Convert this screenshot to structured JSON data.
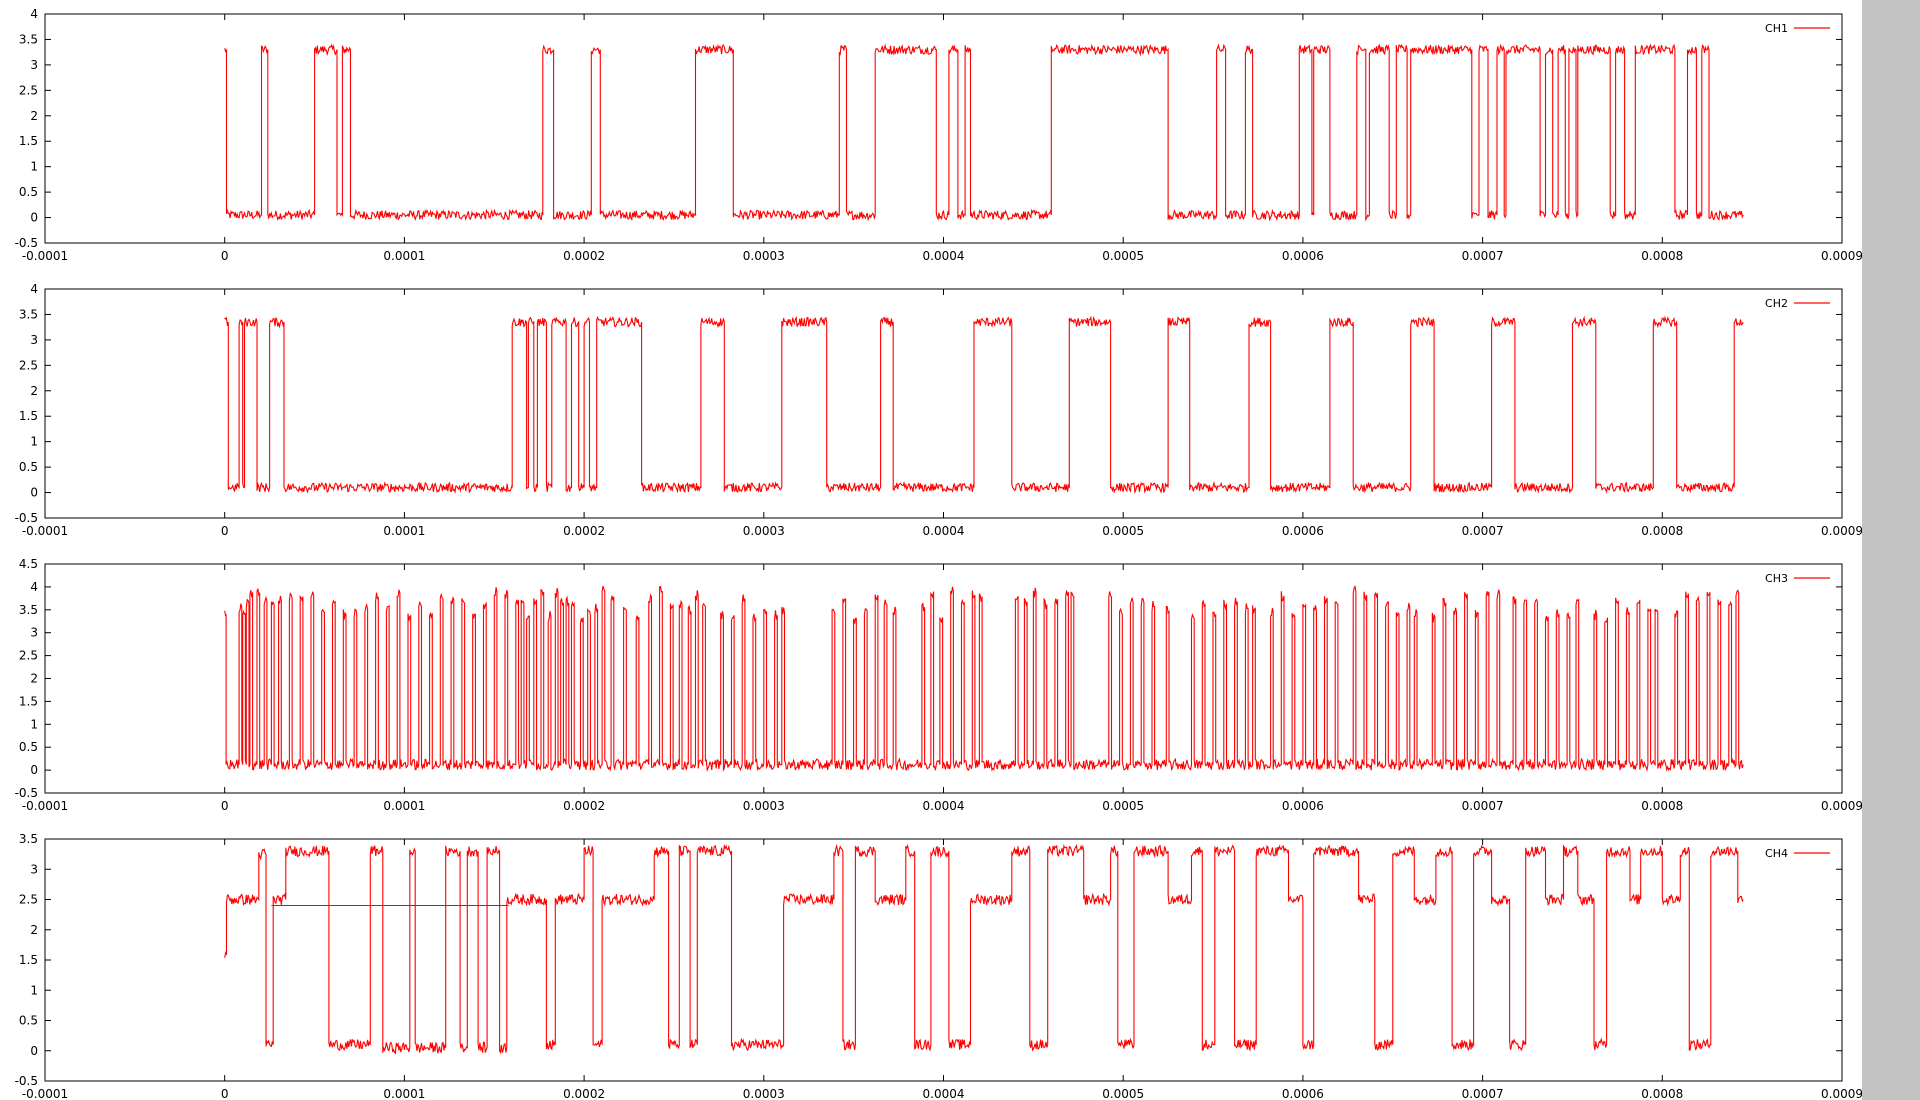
{
  "chart_data": [
    {
      "type": "line",
      "legend_placement": "top-right",
      "grid": false,
      "xlim": [
        -0.0001,
        0.0009
      ],
      "ylim": [
        -0.5,
        4
      ],
      "x_ticks": [
        "-0.0001",
        "0",
        "0.0001",
        "0.0002",
        "0.0003",
        "0.0004",
        "0.0005",
        "0.0006",
        "0.0007",
        "0.0008",
        "0.0009"
      ],
      "y_ticks": [
        "-0.5",
        "0",
        "0.5",
        "1",
        "1.5",
        "2",
        "2.5",
        "3",
        "3.5",
        "4"
      ],
      "series": [
        {
          "name": "CH1",
          "levels": {
            "high": 3.3,
            "low": 0.05,
            "noise": 0.09
          },
          "transitions": [
            [
              0,
              3.3
            ],
            [
              1e-06,
              0.05
            ],
            [
              2.05e-05,
              3.3
            ],
            [
              2.4e-05,
              0.05
            ],
            [
              5e-05,
              3.3
            ],
            [
              6.25e-05,
              0.05
            ],
            [
              6.55e-05,
              3.3
            ],
            [
              7e-05,
              0.05
            ],
            [
              0.000177,
              3.3
            ],
            [
              0.000183,
              0.05
            ],
            [
              0.000204,
              3.3
            ],
            [
              0.000209,
              0.05
            ],
            [
              0.000262,
              3.3
            ],
            [
              0.000283,
              0.05
            ],
            [
              0.000342,
              3.3
            ],
            [
              0.000346,
              0.05
            ],
            [
              0.000362,
              3.3
            ],
            [
              0.000396,
              0.05
            ],
            [
              0.000403,
              3.3
            ],
            [
              0.000408,
              0.05
            ],
            [
              0.000412,
              3.3
            ],
            [
              0.000415,
              0.05
            ],
            [
              0.00046,
              3.3
            ],
            [
              0.000525,
              0.05
            ],
            [
              0.000552,
              3.3
            ],
            [
              0.000557,
              0.05
            ],
            [
              0.000568,
              3.3
            ],
            [
              0.000572,
              0.05
            ],
            [
              0.000598,
              3.3
            ],
            [
              0.000605,
              0.05
            ],
            [
              0.000606,
              3.3
            ],
            [
              0.000615,
              0.05
            ],
            [
              0.00063,
              3.3
            ],
            [
              0.000635,
              0.05
            ],
            [
              0.000637,
              3.3
            ],
            [
              0.000648,
              0.05
            ],
            [
              0.000652,
              3.3
            ],
            [
              0.000658,
              0.05
            ],
            [
              0.00066,
              3.3
            ],
            [
              0.000694,
              0.05
            ],
            [
              0.000698,
              3.3
            ],
            [
              0.000703,
              0.05
            ],
            [
              0.000708,
              3.3
            ],
            [
              0.000712,
              0.05
            ],
            [
              0.000713,
              3.3
            ],
            [
              0.000732,
              0.05
            ],
            [
              0.000735,
              3.3
            ],
            [
              0.000739,
              0.05
            ],
            [
              0.000742,
              3.3
            ],
            [
              0.000746,
              0.05
            ],
            [
              0.000748,
              3.3
            ],
            [
              0.000752,
              0.05
            ],
            [
              0.000753,
              3.3
            ],
            [
              0.000771,
              0.05
            ],
            [
              0.000774,
              3.3
            ],
            [
              0.000779,
              0.05
            ],
            [
              0.000785,
              3.3
            ],
            [
              0.000807,
              0.05
            ],
            [
              0.000814,
              3.3
            ],
            [
              0.000819,
              0.05
            ],
            [
              0.000822,
              3.3
            ],
            [
              0.000826,
              0.05
            ],
            [
              0.000845,
              0.05
            ]
          ]
        }
      ]
    },
    {
      "type": "line",
      "legend_placement": "top-right",
      "grid": false,
      "xlim": [
        -0.0001,
        0.0009
      ],
      "ylim": [
        -0.5,
        4
      ],
      "x_ticks": [
        "-0.0001",
        "0",
        "0.0001",
        "0.0002",
        "0.0003",
        "0.0004",
        "0.0005",
        "0.0006",
        "0.0007",
        "0.0008",
        "0.0009"
      ],
      "y_ticks": [
        "-0.5",
        "0",
        "0.5",
        "1",
        "1.5",
        "2",
        "2.5",
        "3",
        "3.5",
        "4"
      ],
      "series": [
        {
          "name": "CH2",
          "levels": {
            "high": 3.35,
            "low": 0.1,
            "noise": 0.09
          },
          "transitions": [
            [
              0,
              3.35
            ],
            [
              2e-06,
              0.1
            ],
            [
              8e-06,
              3.35
            ],
            [
              1e-05,
              0.1
            ],
            [
              1.1e-05,
              3.35
            ],
            [
              1.8e-05,
              0.1
            ],
            [
              2.5e-05,
              3.35
            ],
            [
              3.3e-05,
              0.1
            ],
            [
              0.00016,
              3.35
            ],
            [
              0.000168,
              0.1
            ],
            [
              0.000169,
              3.35
            ],
            [
              0.000172,
              0.1
            ],
            [
              0.000174,
              3.35
            ],
            [
              0.000179,
              0.1
            ],
            [
              0.000182,
              3.35
            ],
            [
              0.00019,
              0.1
            ],
            [
              0.000193,
              3.35
            ],
            [
              0.000197,
              0.1
            ],
            [
              0.0002,
              3.35
            ],
            [
              0.000203,
              0.1
            ],
            [
              0.000207,
              3.35
            ],
            [
              0.000232,
              0.1
            ],
            [
              0.000265,
              3.35
            ],
            [
              0.000278,
              0.1
            ],
            [
              0.00031,
              3.35
            ],
            [
              0.000335,
              0.1
            ],
            [
              0.000365,
              3.35
            ],
            [
              0.000372,
              0.1
            ],
            [
              0.000417,
              3.35
            ],
            [
              0.000438,
              0.1
            ],
            [
              0.00047,
              3.35
            ],
            [
              0.000493,
              0.1
            ],
            [
              0.000525,
              3.35
            ],
            [
              0.000537,
              0.1
            ],
            [
              0.00057,
              3.35
            ],
            [
              0.000582,
              0.1
            ],
            [
              0.000615,
              3.35
            ],
            [
              0.000628,
              0.1
            ],
            [
              0.00066,
              3.35
            ],
            [
              0.000673,
              0.1
            ],
            [
              0.000705,
              3.35
            ],
            [
              0.000718,
              0.1
            ],
            [
              0.00075,
              3.35
            ],
            [
              0.000763,
              0.1
            ],
            [
              0.000795,
              3.35
            ],
            [
              0.000808,
              0.1
            ],
            [
              0.00084,
              3.35
            ],
            [
              0.000845,
              3.35
            ]
          ]
        }
      ]
    },
    {
      "type": "line",
      "legend_placement": "top-right",
      "grid": false,
      "xlim": [
        -0.0001,
        0.0009
      ],
      "ylim": [
        -0.5,
        4.5
      ],
      "x_ticks": [
        "-0.0001",
        "0",
        "0.0001",
        "0.0002",
        "0.0003",
        "0.0004",
        "0.0005",
        "0.0006",
        "0.0007",
        "0.0008",
        "0.0009"
      ],
      "y_ticks": [
        "-0.5",
        "0",
        "0.5",
        "1",
        "1.5",
        "2",
        "2.5",
        "3",
        "3.5",
        "4",
        "4.5"
      ],
      "series": [
        {
          "name": "CH3",
          "levels": {
            "high": 3.4,
            "low": 0.12,
            "noise": 0.12
          },
          "pulses": [
            8e-06,
            1e-05,
            1.2e-05,
            1.4e-05,
            1.8e-05,
            2.2e-05,
            2.6e-05,
            3e-05,
            3.6e-05,
            4.2e-05,
            4.8e-05,
            5.4e-05,
            6e-05,
            6.6e-05,
            7.2e-05,
            7.8e-05,
            8.4e-05,
            9e-05,
            9.6e-05,
            0.000102,
            0.000108,
            0.000114,
            0.00012,
            0.000126,
            0.000132,
            0.000138,
            0.000144,
            0.00015,
            0.000156,
            0.000162,
            0.000165,
            0.000168,
            0.000172,
            0.000176,
            0.00018,
            0.000184,
            0.000187,
            0.00019,
            0.000193,
            0.000198,
            0.000202,
            0.000206,
            0.00021,
            0.000215,
            0.000222,
            0.000229,
            0.000236,
            0.000242,
            0.000248,
            0.000253,
            0.000258,
            0.000262,
            0.000266,
            0.000276,
            0.000282,
            0.000288,
            0.000294,
            0.0003,
            0.000306,
            0.00031,
            0.000338,
            0.000344,
            0.00035,
            0.000356,
            0.000362,
            0.000367,
            0.000372,
            0.000388,
            0.000393,
            0.000398,
            0.000404,
            0.00041,
            0.000416,
            0.00042,
            0.00044,
            0.000445,
            0.00045,
            0.000456,
            0.000462,
            0.000468,
            0.000471,
            0.000492,
            0.000498,
            0.000504,
            0.00051,
            0.000516,
            0.000524,
            0.000538,
            0.000544,
            0.00055,
            0.000556,
            0.000562,
            0.000568,
            0.000572,
            0.000582,
            0.000588,
            0.000594,
            0.0006,
            0.000606,
            0.000612,
            0.000618,
            0.000628,
            0.000634,
            0.00064,
            0.000646,
            0.000652,
            0.000658,
            0.000662,
            0.000672,
            0.000678,
            0.000684,
            0.00069,
            0.000696,
            0.000702,
            0.000708,
            0.000717,
            0.000723,
            0.000729,
            0.000735,
            0.000741,
            0.000747,
            0.000752,
            0.000762,
            0.000768,
            0.000774,
            0.00078,
            0.000786,
            0.000792,
            0.000796,
            0.000807,
            0.000813,
            0.000819,
            0.000825,
            0.000831,
            0.000837,
            0.000841
          ]
        }
      ]
    },
    {
      "type": "line",
      "legend_placement": "top-right",
      "grid": false,
      "xlim": [
        -0.0001,
        0.0009
      ],
      "ylim": [
        -0.5,
        3.5
      ],
      "x_ticks": [
        "-0.0001",
        "0",
        "0.0001",
        "0.0002",
        "0.0003",
        "0.0004",
        "0.0005",
        "0.0006",
        "0.0007",
        "0.0008",
        "0.0009"
      ],
      "y_ticks": [
        "-0.5",
        "0",
        "0.5",
        "1",
        "1.5",
        "2",
        "2.5",
        "3",
        "3.5"
      ],
      "series": [
        {
          "name": "CH4",
          "levels": {
            "noise": 0.09
          },
          "transitions": [
            [
              0,
              1.6
            ],
            [
              1e-06,
              2.5
            ],
            [
              1.9e-05,
              3.25
            ],
            [
              2.3e-05,
              0.1
            ],
            [
              2.7e-05,
              2.5
            ],
            [
              3.4e-05,
              3.3
            ],
            [
              5.8e-05,
              0.1
            ],
            [
              8.1e-05,
              3.3
            ],
            [
              8.8e-05,
              0.05
            ],
            [
              0.000103,
              3.3
            ],
            [
              0.000106,
              0.05
            ],
            [
              0.000123,
              3.3
            ],
            [
              0.000131,
              0.05
            ],
            [
              0.000135,
              3.3
            ],
            [
              0.000141,
              0.05
            ],
            [
              0.000146,
              3.3
            ],
            [
              0.000153,
              0.05
            ],
            [
              0.000157,
              2.5
            ],
            [
              0.000179,
              0.1
            ],
            [
              0.000184,
              2.5
            ],
            [
              0.0002,
              3.3
            ],
            [
              0.000205,
              0.1
            ],
            [
              0.00021,
              2.5
            ],
            [
              0.000239,
              3.3
            ],
            [
              0.000247,
              0.1
            ],
            [
              0.000253,
              3.3
            ],
            [
              0.000259,
              0.1
            ],
            [
              0.000263,
              3.3
            ],
            [
              0.000282,
              0.1
            ],
            [
              0.000311,
              2.5
            ],
            [
              0.000339,
              3.3
            ],
            [
              0.000344,
              0.1
            ],
            [
              0.000351,
              3.3
            ],
            [
              0.000362,
              2.5
            ],
            [
              0.000379,
              3.3
            ],
            [
              0.000384,
              0.1
            ],
            [
              0.000393,
              3.3
            ],
            [
              0.000403,
              0.1
            ],
            [
              0.000415,
              2.5
            ],
            [
              0.000438,
              3.3
            ],
            [
              0.000448,
              0.1
            ],
            [
              0.000458,
              3.3
            ],
            [
              0.000478,
              2.5
            ],
            [
              0.000493,
              3.3
            ],
            [
              0.000497,
              0.1
            ],
            [
              0.000506,
              3.3
            ],
            [
              0.000525,
              2.5
            ],
            [
              0.000538,
              3.3
            ],
            [
              0.000544,
              0.1
            ],
            [
              0.000551,
              3.3
            ],
            [
              0.000562,
              0.1
            ],
            [
              0.000574,
              3.3
            ],
            [
              0.000592,
              2.5
            ],
            [
              0.0006,
              0.1
            ],
            [
              0.000606,
              3.3
            ],
            [
              0.000631,
              2.5
            ],
            [
              0.00064,
              0.1
            ],
            [
              0.00065,
              3.3
            ],
            [
              0.000662,
              2.5
            ],
            [
              0.000674,
              3.3
            ],
            [
              0.000683,
              0.1
            ],
            [
              0.000695,
              3.3
            ],
            [
              0.000705,
              2.5
            ],
            [
              0.000715,
              0.1
            ],
            [
              0.000724,
              3.3
            ],
            [
              0.000735,
              2.5
            ],
            [
              0.000745,
              3.3
            ],
            [
              0.000753,
              2.5
            ],
            [
              0.000762,
              0.1
            ],
            [
              0.000769,
              3.3
            ],
            [
              0.000782,
              2.5
            ],
            [
              0.000788,
              3.3
            ],
            [
              0.0008,
              2.5
            ],
            [
              0.00081,
              3.3
            ],
            [
              0.000815,
              0.1
            ],
            [
              0.000827,
              3.3
            ],
            [
              0.000842,
              2.5
            ],
            [
              0.000845,
              2.5
            ]
          ],
          "extra_segments": [
            {
              "x0": 2.6e-05,
              "x1": 0.000158,
              "y": 2.4
            }
          ]
        }
      ]
    }
  ],
  "colors": {
    "trace": "#ff0000",
    "axis": "#000000",
    "background": "#ffffff",
    "scrollbar": "#c3c3c3"
  }
}
